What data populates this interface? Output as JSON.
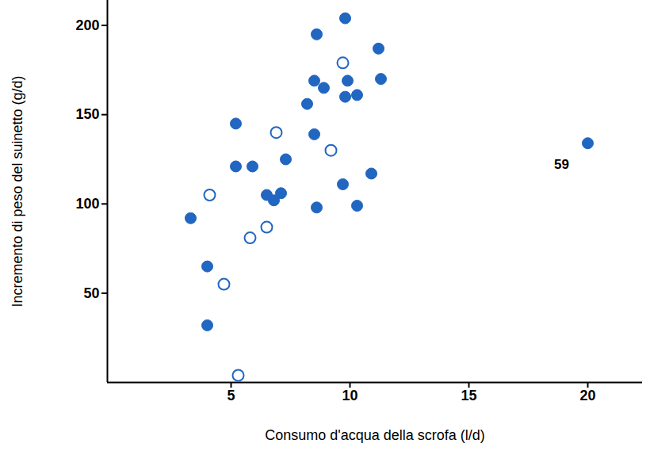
{
  "chart_data": {
    "type": "scatter",
    "x_label": "Consumo d'acqua della scrofa (l/d)",
    "y_label": "Incremento di peso del suinetto (g/d)",
    "xlim": [
      -0.2,
      22.3
    ],
    "ylim": [
      0,
      214
    ],
    "xticks": [
      5,
      10,
      15,
      20
    ],
    "yticks": [
      50,
      100,
      150,
      200
    ],
    "grid": false,
    "series": [
      {
        "color": "#2166c0",
        "marker": "circle",
        "x": [
          3.3,
          4.0,
          4.0,
          5.2,
          5.2,
          5.9,
          6.5,
          6.8,
          7.1,
          7.3,
          8.5,
          8.6,
          8.2,
          8.5,
          8.6,
          8.9,
          9.8,
          9.9,
          9.8,
          10.3,
          11.2,
          11.3,
          9.7,
          10.3,
          10.9,
          20.0
        ],
        "values": [
          92,
          65,
          32,
          145,
          121,
          121,
          105,
          102,
          106,
          125,
          139,
          98,
          156,
          169,
          195,
          165,
          204,
          169,
          160,
          161,
          187,
          170,
          111,
          99,
          117,
          134
        ]
      },
      {
        "color": "#2166c0",
        "marker": "open_circle",
        "x": [
          4.1,
          4.7,
          5.8,
          6.5,
          6.9,
          5.3,
          9.2,
          9.7
        ],
        "values": [
          105,
          55,
          81,
          87,
          140,
          4,
          130,
          179
        ]
      }
    ],
    "annotations": [
      {
        "text": "59",
        "x": 18.9,
        "y": 122
      }
    ]
  }
}
